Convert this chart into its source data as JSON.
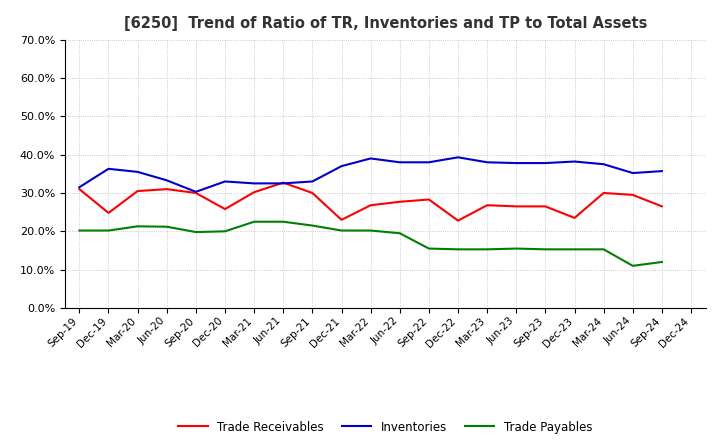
{
  "title": "[6250]  Trend of Ratio of TR, Inventories and TP to Total Assets",
  "x_labels": [
    "Sep-19",
    "Dec-19",
    "Mar-20",
    "Jun-20",
    "Sep-20",
    "Dec-20",
    "Mar-21",
    "Jun-21",
    "Sep-21",
    "Dec-21",
    "Mar-22",
    "Jun-22",
    "Sep-22",
    "Dec-22",
    "Mar-23",
    "Jun-23",
    "Sep-23",
    "Dec-23",
    "Mar-24",
    "Jun-24",
    "Sep-24",
    "Dec-24"
  ],
  "trade_receivables": [
    0.31,
    0.248,
    0.305,
    0.31,
    0.3,
    0.258,
    0.302,
    0.327,
    0.3,
    0.23,
    0.268,
    0.277,
    0.283,
    0.228,
    0.268,
    0.265,
    0.265,
    0.235,
    0.3,
    0.295,
    0.265,
    null
  ],
  "inventories": [
    0.315,
    0.363,
    0.355,
    0.333,
    0.303,
    0.33,
    0.325,
    0.325,
    0.33,
    0.37,
    0.39,
    0.38,
    0.38,
    0.393,
    0.38,
    0.378,
    0.378,
    0.382,
    0.375,
    0.352,
    0.357,
    null
  ],
  "trade_payables": [
    0.202,
    0.202,
    0.213,
    0.212,
    0.198,
    0.2,
    0.225,
    0.225,
    0.215,
    0.202,
    0.202,
    0.195,
    0.155,
    0.153,
    0.153,
    0.155,
    0.153,
    0.153,
    0.153,
    0.11,
    0.12,
    null
  ],
  "ylim": [
    0.0,
    0.7
  ],
  "yticks": [
    0.0,
    0.1,
    0.2,
    0.3,
    0.4,
    0.5,
    0.6,
    0.7
  ],
  "line_color_tr": "#ff0000",
  "line_color_inv": "#0000cc",
  "line_color_tp": "#008000",
  "legend_labels": [
    "Trade Receivables",
    "Inventories",
    "Trade Payables"
  ],
  "background_color": "#ffffff",
  "grid_color": "#bbbbbb",
  "title_color": "#333333"
}
